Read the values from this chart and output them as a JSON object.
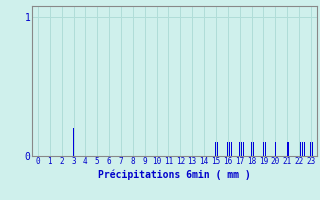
{
  "xlabel": "Précipitations 6min ( mm )",
  "background_color": "#cff0ec",
  "bar_color": "#0000dd",
  "grid_color": "#b0ddd8",
  "text_color": "#0000cc",
  "xlim": [
    -0.5,
    23.5
  ],
  "ylim": [
    0,
    1.08
  ],
  "yticks": [
    0,
    1
  ],
  "ytick_labels": [
    "0",
    "1"
  ],
  "xtick_labels": [
    "0",
    "1",
    "2",
    "3",
    "4",
    "5",
    "6",
    "7",
    "8",
    "9",
    "10",
    "11",
    "12",
    "13",
    "14",
    "15",
    "16",
    "17",
    "18",
    "19",
    "20",
    "21",
    "22",
    "23"
  ],
  "bar_positions": [
    3,
    15,
    15.15,
    16,
    16.15,
    16.3,
    17,
    17.15,
    17.3,
    18,
    18.15,
    19,
    19.15,
    20,
    21,
    21.15,
    22,
    22.15,
    22.3,
    22.45,
    23,
    23.15
  ],
  "bar_heights": [
    0.2,
    0.1,
    0.1,
    0.1,
    0.1,
    0.1,
    0.1,
    0.1,
    0.1,
    0.1,
    0.1,
    0.1,
    0.1,
    0.1,
    0.1,
    0.1,
    0.1,
    0.1,
    0.1,
    0.1,
    0.1,
    0.1
  ],
  "bar_width": 0.08,
  "spine_color": "#888888",
  "xlabel_fontsize": 7,
  "tick_fontsize": 5.5,
  "ytick_fontsize": 7
}
